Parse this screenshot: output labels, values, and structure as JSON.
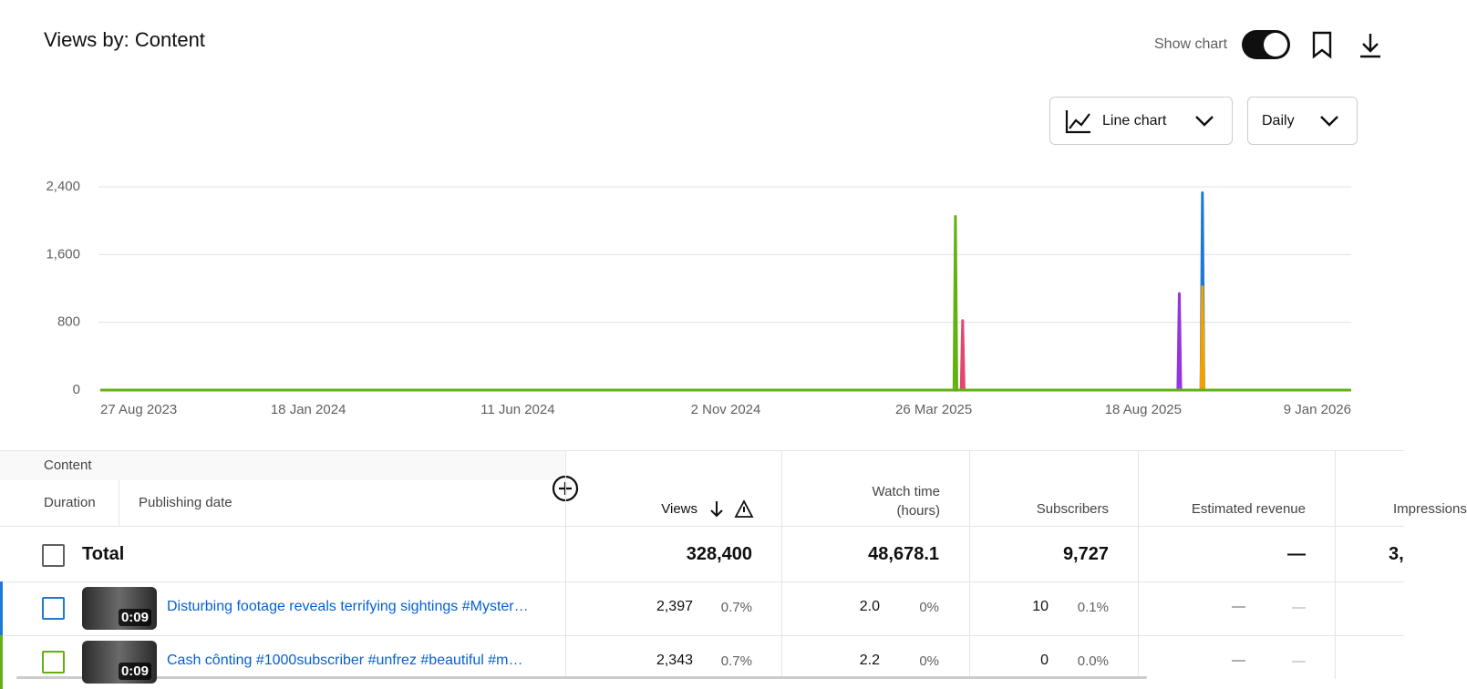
{
  "header": {
    "title": "Views by: Content",
    "show_chart": "Show chart",
    "chart_type": "Line chart",
    "interval": "Daily"
  },
  "chart_data": {
    "type": "line",
    "x": [
      "2023-08-27",
      "2025-04-09",
      "2025-04-10",
      "2025-04-11",
      "2025-04-14",
      "2025-04-15",
      "2025-04-16",
      "2025-09-11",
      "2025-09-12",
      "2025-09-13",
      "2025-09-27",
      "2025-09-28",
      "2025-09-29",
      "2026-01-09"
    ],
    "series": [
      {
        "color": "#1c7ad6",
        "values": [
          0,
          0,
          0,
          0,
          0,
          0,
          0,
          0,
          0,
          0,
          0,
          2330,
          0,
          0
        ]
      },
      {
        "color": "#f2a100",
        "values": [
          0,
          0,
          0,
          0,
          0,
          0,
          0,
          0,
          0,
          0,
          0,
          1220,
          0,
          0
        ]
      },
      {
        "color": "#e2486f",
        "values": [
          0,
          0,
          0,
          0,
          0,
          820,
          0,
          0,
          0,
          0,
          0,
          0,
          0,
          0
        ]
      },
      {
        "color": "#9435e0",
        "values": [
          0,
          0,
          0,
          0,
          0,
          0,
          0,
          0,
          1140,
          0,
          0,
          0,
          0,
          0
        ]
      },
      {
        "color": "#63b012",
        "values": [
          0,
          0,
          2050,
          0,
          0,
          0,
          0,
          0,
          0,
          0,
          0,
          0,
          0,
          0
        ]
      }
    ],
    "xlim": [
      "2023-08-27",
      "2026-01-09"
    ],
    "xticks": [
      {
        "value": "2023-08-27",
        "label": "27 Aug 2023"
      },
      {
        "value": "2024-01-18",
        "label": "18 Jan 2024"
      },
      {
        "value": "2024-06-11",
        "label": "11 Jun 2024"
      },
      {
        "value": "2024-11-02",
        "label": "2 Nov 2024"
      },
      {
        "value": "2025-03-26",
        "label": "26 Mar 2025"
      },
      {
        "value": "2025-08-18",
        "label": "18 Aug 2025"
      },
      {
        "value": "2026-01-09",
        "label": "9 Jan 2026"
      }
    ],
    "ylim": [
      0,
      2400
    ],
    "yticks": [
      0,
      800,
      {
        "value": 1600,
        "label": "1,600"
      },
      {
        "value": 2400,
        "label": "2,400"
      }
    ],
    "grid": true
  },
  "table": {
    "group_header": "Content",
    "columns": [
      "Duration",
      "Publishing date",
      "Views",
      "Watch time (hours)",
      "Subscribers",
      "Estimated revenue",
      "Impressions"
    ],
    "total": {
      "label": "Total",
      "cells": [
        "328,400",
        "48,678.1",
        "9,727",
        "—",
        "3,"
      ]
    },
    "rows": [
      {
        "duration": "0:09",
        "title": "Disturbing footage reveals terrifying sightings #Myster…",
        "cells": [
          [
            "2,397",
            "0.7%"
          ],
          [
            "2.0",
            "0%"
          ],
          [
            "10",
            "0.1%"
          ],
          [
            "—",
            "—"
          ]
        ]
      },
      {
        "duration": "0:09",
        "title": "Cash cônting #1000subscriber #unfrez #beautiful #m…",
        "cells": [
          [
            "2,343",
            "0.7%"
          ],
          [
            "2.2",
            "0%"
          ],
          [
            "0",
            "0.0%"
          ],
          [
            "—",
            "—"
          ]
        ]
      }
    ]
  }
}
